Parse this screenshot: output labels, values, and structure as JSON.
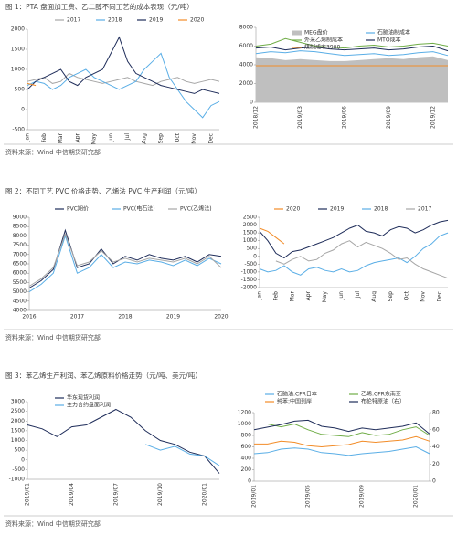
{
  "captions": [
    "图 1：PTA 盘面加工费、乙二醇不同工艺的成本表现（元/吨）",
    "图 2：不同工艺 PVC 价格走势、乙烯法 PVC 生产利润（元/吨）",
    "图 3：苯乙烯生产利润、苯乙烯原料价格走势（元/吨、美元/吨）"
  ],
  "sources": [
    "资料来源：Wind 中信期货研究部",
    "资料来源：Wind 中信期货研究部",
    "资料来源：Wind 中信期货研究部"
  ],
  "chart_data": [
    {
      "type": "line",
      "ylim": [
        -500,
        2000
      ],
      "yticks": [
        -500,
        0,
        500,
        1000,
        1500,
        2000
      ],
      "categories": [
        "Jan",
        null,
        "Feb",
        null,
        "Mar",
        null,
        "Apr",
        null,
        "May",
        null,
        "Jun",
        null,
        "Jul",
        null,
        "Aug",
        null,
        "Sep",
        null,
        "Oct",
        null,
        "Nov",
        null,
        "Dec",
        null
      ],
      "series": [
        {
          "name": "2017",
          "color": "#a6a6a6",
          "values": [
            700,
            750,
            800,
            650,
            700,
            900,
            800,
            750,
            700,
            650,
            700,
            750,
            800,
            700,
            650,
            600,
            700,
            750,
            800,
            700,
            650,
            700,
            750,
            700
          ]
        },
        {
          "name": "2018",
          "color": "#5aaee6",
          "values": [
            600,
            700,
            650,
            500,
            600,
            800,
            900,
            1000,
            800,
            700,
            600,
            500,
            600,
            700,
            1000,
            1200,
            1400,
            800,
            500,
            200,
            0,
            -200,
            100,
            200
          ]
        },
        {
          "name": "2019",
          "color": "#1f2d5a",
          "values": [
            500,
            700,
            800,
            900,
            1000,
            700,
            600,
            800,
            900,
            1000,
            1400,
            1800,
            1200,
            900,
            800,
            700,
            600,
            550,
            500,
            450,
            400,
            500,
            450,
            400
          ]
        },
        {
          "name": "2020",
          "color": "#f28c28",
          "values": [
            650,
            600,
            null,
            null,
            null,
            null,
            null,
            null,
            null,
            null,
            null,
            null,
            null,
            null,
            null,
            null,
            null,
            null,
            null,
            null,
            null,
            null,
            null,
            null
          ]
        }
      ]
    },
    {
      "type": "line",
      "ylim": [
        0,
        8000
      ],
      "yticks": [
        0,
        2000,
        4000,
        6000,
        8000
      ],
      "categories": [
        "2018/12",
        null,
        null,
        "2019/03",
        null,
        null,
        "2019/06",
        null,
        null,
        "2019/09",
        null,
        null,
        "2019/12",
        null
      ],
      "series": [
        {
          "name": "MEG盘价",
          "color": "#bfbfbf",
          "fill": true,
          "values": [
            4800,
            4700,
            4500,
            4600,
            4500,
            4400,
            4400,
            4500,
            4600,
            4700,
            4600,
            4800,
            4900,
            4500
          ]
        },
        {
          "name": "石脑油制成本",
          "color": "#5aaee6",
          "values": [
            5200,
            5400,
            5300,
            5500,
            5400,
            5200,
            5000,
            5100,
            5200,
            5000,
            5100,
            5300,
            5400,
            5000
          ]
        },
        {
          "name": "外采乙烯制成本",
          "color": "#70ad47",
          "values": [
            6000,
            6200,
            6800,
            6400,
            6000,
            5900,
            5800,
            6000,
            6100,
            5900,
            6000,
            6200,
            6300,
            6000
          ]
        },
        {
          "name": "MTO成本",
          "color": "#1f2d5a",
          "values": [
            5800,
            5900,
            5600,
            5800,
            5900,
            5700,
            5600,
            5700,
            5800,
            5600,
            5700,
            5900,
            6000,
            5500
          ]
        },
        {
          "name": "煤制成本3900",
          "color": "#f28c28",
          "values": [
            3900,
            3900,
            3900,
            3900,
            3900,
            3900,
            3900,
            3900,
            3900,
            3900,
            3900,
            3900,
            3900,
            3900
          ]
        }
      ]
    },
    {
      "type": "line",
      "ylim": [
        4000,
        9000
      ],
      "yticks": [
        4000,
        4500,
        5000,
        5500,
        6000,
        6500,
        7000,
        7500,
        8000,
        8500,
        9000
      ],
      "categories": [
        "2016",
        null,
        null,
        null,
        "2017",
        null,
        null,
        null,
        "2018",
        null,
        null,
        null,
        "2019",
        null,
        null,
        null,
        "2020"
      ],
      "series": [
        {
          "name": "PVC期价",
          "color": "#1f2d5a",
          "values": [
            5200,
            5600,
            6200,
            8300,
            6300,
            6500,
            7300,
            6500,
            6900,
            6700,
            7000,
            6800,
            6700,
            6900,
            6600,
            7000,
            6900
          ]
        },
        {
          "name": "PVC(电石法)",
          "color": "#5aaee6",
          "values": [
            5000,
            5400,
            6000,
            8000,
            6000,
            6300,
            7000,
            6300,
            6600,
            6500,
            6700,
            6600,
            6400,
            6700,
            6400,
            6800,
            6500
          ]
        },
        {
          "name": "PVC(乙烯法)",
          "color": "#a6a6a6",
          "values": [
            5300,
            5700,
            6300,
            8100,
            6400,
            6600,
            7200,
            6600,
            6800,
            6600,
            6800,
            6700,
            6600,
            6800,
            6500,
            6900,
            6300
          ]
        }
      ]
    },
    {
      "type": "line",
      "ylim": [
        -2000,
        2500
      ],
      "yticks": [
        -2000,
        -1500,
        -1000,
        -500,
        0,
        500,
        1000,
        1500,
        2000,
        2500
      ],
      "categories": [
        "Jan",
        null,
        "Feb",
        null,
        "Mar",
        null,
        "Apr",
        null,
        "May",
        null,
        "Jun",
        null,
        "Jul",
        null,
        "Aug",
        null,
        "Sep",
        null,
        "Oct",
        null,
        "Nov",
        null,
        "Dec",
        null
      ],
      "series": [
        {
          "name": "2020",
          "color": "#f28c28",
          "values": [
            1800,
            1600,
            1200,
            800,
            null,
            null,
            null,
            null,
            null,
            null,
            null,
            null,
            null,
            null,
            null,
            null,
            null,
            null,
            null,
            null,
            null,
            null,
            null,
            null
          ]
        },
        {
          "name": "2019",
          "color": "#1f2d5a",
          "values": [
            1600,
            1000,
            200,
            -100,
            300,
            400,
            600,
            800,
            1000,
            1200,
            1500,
            1800,
            2000,
            1600,
            1500,
            1300,
            1700,
            1900,
            1800,
            1500,
            1700,
            2000,
            2200,
            2300
          ]
        },
        {
          "name": "2018",
          "color": "#5aaee6",
          "values": [
            -800,
            -1000,
            -900,
            -600,
            -1000,
            -1200,
            -800,
            -700,
            -900,
            -1000,
            -800,
            -1000,
            -900,
            -600,
            -400,
            -300,
            -200,
            -100,
            -400,
            0,
            500,
            800,
            1300,
            1500
          ]
        },
        {
          "name": "2017",
          "color": "#a6a6a6",
          "values": [
            null,
            null,
            -300,
            -500,
            -200,
            0,
            -300,
            -200,
            200,
            400,
            800,
            1000,
            600,
            900,
            700,
            500,
            200,
            -200,
            -100,
            -500,
            -800,
            -1000,
            -1200,
            -1400
          ]
        }
      ]
    },
    {
      "type": "line",
      "ylim": [
        -1000,
        3000
      ],
      "yticks": [
        -1000,
        -500,
        0,
        500,
        1000,
        1500,
        2000,
        2500,
        3000
      ],
      "categories": [
        "2019/01",
        null,
        null,
        "2019/04",
        null,
        null,
        "2019/07",
        null,
        null,
        "2019/10",
        null,
        null,
        "2020/01",
        null
      ],
      "series": [
        {
          "name": "华东现货利润",
          "color": "#1f2d5a",
          "values": [
            1800,
            1600,
            1200,
            1700,
            1800,
            2200,
            2600,
            2200,
            1500,
            1000,
            800,
            400,
            200,
            -700
          ]
        },
        {
          "name": "主力合约盘面利润",
          "color": "#5aaee6",
          "values": [
            null,
            null,
            null,
            null,
            null,
            null,
            null,
            null,
            800,
            500,
            700,
            300,
            200,
            -300
          ]
        }
      ]
    },
    {
      "type": "line",
      "ylim": [
        0,
        1200
      ],
      "yticks": [
        0,
        200,
        400,
        600,
        800,
        1000,
        1200
      ],
      "y2lim": [
        0,
        80
      ],
      "y2ticks": [
        0,
        20,
        40,
        60,
        80
      ],
      "categories": [
        "2019/01",
        null,
        null,
        null,
        "2019/05",
        null,
        null,
        null,
        "2019/09",
        null,
        null,
        null,
        "2020/01",
        null
      ],
      "series": [
        {
          "name": "石脑油:CFR日本",
          "color": "#5aaee6",
          "values": [
            480,
            500,
            560,
            580,
            560,
            500,
            480,
            450,
            480,
            500,
            520,
            560,
            600,
            480
          ]
        },
        {
          "name": "乙烯:CFR东南亚",
          "color": "#70ad47",
          "values": [
            1000,
            1000,
            950,
            1000,
            900,
            820,
            800,
            780,
            850,
            800,
            820,
            900,
            950,
            800
          ]
        },
        {
          "name": "纯苯:中国到岸",
          "color": "#f28c28",
          "values": [
            650,
            650,
            700,
            680,
            620,
            600,
            620,
            640,
            700,
            680,
            700,
            720,
            780,
            700
          ]
        },
        {
          "name": "布伦特原油（右）",
          "color": "#1f2d5a",
          "axis": "y2",
          "values": [
            60,
            63,
            66,
            70,
            71,
            64,
            62,
            58,
            62,
            60,
            62,
            64,
            68,
            55
          ]
        }
      ]
    }
  ]
}
